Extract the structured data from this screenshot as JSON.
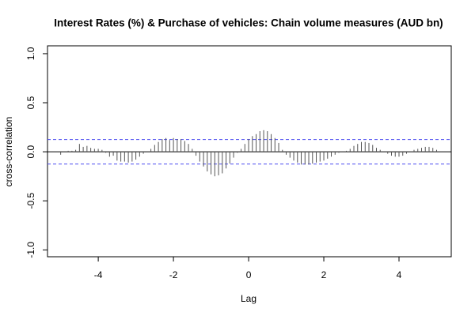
{
  "chart_data": {
    "type": "ccf",
    "title": "Interest Rates (%) & Purchase of vehicles: Chain volume measures (AUD bn)",
    "xlabel": "Lag",
    "ylabel": "cross-correlation",
    "x": [
      -5.0,
      -4.9,
      -4.8,
      -4.7,
      -4.6,
      -4.5,
      -4.4,
      -4.3,
      -4.2,
      -4.1,
      -4.0,
      -3.9,
      -3.8,
      -3.7,
      -3.6,
      -3.5,
      -3.4,
      -3.3,
      -3.2,
      -3.1,
      -3.0,
      -2.9,
      -2.8,
      -2.7,
      -2.6,
      -2.5,
      -2.4,
      -2.3,
      -2.2,
      -2.1,
      -2.0,
      -1.9,
      -1.8,
      -1.7,
      -1.6,
      -1.5,
      -1.4,
      -1.3,
      -1.2,
      -1.1,
      -1.0,
      -0.9,
      -0.8,
      -0.7,
      -0.6,
      -0.5,
      -0.4,
      -0.3,
      -0.2,
      -0.1,
      0.0,
      0.1,
      0.2,
      0.3,
      0.4,
      0.5,
      0.6,
      0.7,
      0.8,
      0.9,
      1.0,
      1.1,
      1.2,
      1.3,
      1.4,
      1.5,
      1.6,
      1.7,
      1.8,
      1.9,
      2.0,
      2.1,
      2.2,
      2.3,
      2.4,
      2.5,
      2.6,
      2.7,
      2.8,
      2.9,
      3.0,
      3.1,
      3.2,
      3.3,
      3.4,
      3.5,
      3.6,
      3.7,
      3.8,
      3.9,
      4.0,
      4.1,
      4.2,
      4.3,
      4.4,
      4.5,
      4.6,
      4.7,
      4.8,
      4.9,
      5.0
    ],
    "values": [
      -0.03,
      0.0,
      0.01,
      0.01,
      0.02,
      0.08,
      0.05,
      0.06,
      0.04,
      0.03,
      0.03,
      0.02,
      -0.01,
      -0.05,
      -0.04,
      -0.09,
      -0.1,
      -0.1,
      -0.11,
      -0.1,
      -0.08,
      -0.05,
      -0.02,
      0.0,
      0.03,
      0.07,
      0.1,
      0.13,
      0.14,
      0.12,
      0.14,
      0.13,
      0.13,
      0.11,
      0.08,
      0.03,
      -0.04,
      -0.1,
      -0.15,
      -0.2,
      -0.23,
      -0.25,
      -0.24,
      -0.22,
      -0.17,
      -0.12,
      -0.06,
      -0.01,
      0.03,
      0.08,
      0.13,
      0.16,
      0.18,
      0.21,
      0.22,
      0.21,
      0.18,
      0.14,
      0.09,
      0.02,
      -0.03,
      -0.06,
      -0.09,
      -0.11,
      -0.13,
      -0.13,
      -0.13,
      -0.12,
      -0.11,
      -0.1,
      -0.09,
      -0.07,
      -0.05,
      -0.03,
      -0.01,
      0.0,
      0.01,
      0.03,
      0.06,
      0.08,
      0.1,
      0.1,
      0.09,
      0.07,
      0.04,
      0.02,
      0.0,
      -0.02,
      -0.04,
      -0.05,
      -0.05,
      -0.04,
      -0.02,
      0.0,
      0.02,
      0.03,
      0.04,
      0.05,
      0.05,
      0.04,
      0.02
    ],
    "color": "#555555",
    "ci": [
      0.125,
      -0.125
    ],
    "ci_color": "#4a4af0",
    "xlim": [
      -5.35,
      5.39
    ],
    "ylim": [
      -1.07,
      1.08
    ],
    "xticks": [
      -4,
      -2,
      0,
      2,
      4
    ],
    "yticks": [
      {
        "value": -1,
        "label": "-1.0"
      },
      {
        "value": -0.5,
        "label": "-0.5"
      },
      {
        "value": 0,
        "label": "0.0"
      },
      {
        "value": 0.5,
        "label": "0.5"
      },
      {
        "value": 1,
        "label": "1.0"
      }
    ]
  }
}
